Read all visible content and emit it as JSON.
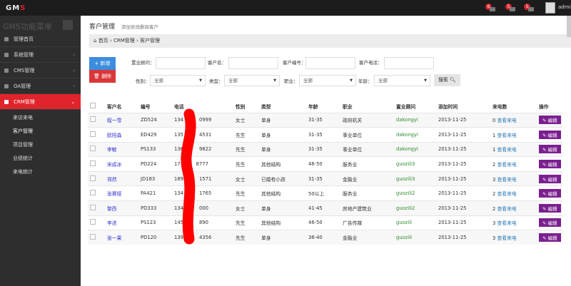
{
  "header": {
    "logo": "GMS",
    "notifications": [
      {
        "icon": "user-icon",
        "count": "6"
      },
      {
        "icon": "mail-icon",
        "count": "5"
      },
      {
        "icon": "task-icon",
        "count": "5"
      }
    ],
    "user": "admin"
  },
  "sidebar": {
    "title": "GMS功能菜单",
    "items": [
      {
        "label": "管理首页",
        "icon": "home-icon"
      },
      {
        "label": "系统管理",
        "icon": "gear-icon"
      },
      {
        "label": "CMS管理",
        "icon": "leaf-icon"
      },
      {
        "label": "OA管理",
        "icon": "sitemap-icon"
      },
      {
        "label": "CRM管理",
        "icon": "phone-icon",
        "active": true
      }
    ],
    "subitems": [
      "来访来电",
      "客户管理",
      "项目管理",
      "业绩统计",
      "来电统计"
    ]
  },
  "page": {
    "title": "客户管理",
    "subtitle": "添加修改删除客户",
    "breadcrumb": [
      "首页",
      "CRM管理",
      "客户管理"
    ]
  },
  "actions": {
    "add": "新增",
    "delete": "删除"
  },
  "filters": {
    "advisor": "置业顾问：",
    "name": "客户名：",
    "code": "客户编号：",
    "phone": "客户电话：",
    "gender": "性别：",
    "type": "类型：",
    "job": "职业：",
    "age": "年龄：",
    "all": "全部",
    "search": "搜索"
  },
  "table": {
    "headers": [
      "客户名",
      "编号",
      "电话",
      "性别",
      "类型",
      "年龄",
      "职业",
      "置业顾问",
      "添加时间",
      "来电数",
      "操作"
    ],
    "view_label": "查看来电",
    "edit_label": "编辑",
    "rows": [
      [
        "程一雪",
        "ZD524",
        "134",
        "0999",
        "女士",
        "单身",
        "31-35",
        "政府机关",
        "dakongyi",
        "2013-11-25",
        "0"
      ],
      [
        "欧阳森",
        "ED429",
        "135",
        "4531",
        "先生",
        "单身",
        "31-35",
        "事业单位",
        "dakongyi",
        "2013-11-25",
        "1"
      ],
      [
        "李敏",
        "PS133",
        "136",
        "9822",
        "先生",
        "单身",
        "31-35",
        "事业单位",
        "dakongyi",
        "2013-11-25",
        "1"
      ],
      [
        "宋成冰",
        "PD224",
        "17",
        "8777",
        "先生",
        "其他结构",
        "46-50",
        "服务业",
        "guozili3",
        "2013-11-25",
        "2"
      ],
      [
        "郑然",
        "JD183",
        "189",
        "1571",
        "女士",
        "已婚有小孩",
        "31-35",
        "金融业",
        "guozili3",
        "2013-11-25",
        "3"
      ],
      [
        "张赛娅",
        "PA421",
        "134",
        "1765",
        "先生",
        "其他结构",
        "50以上",
        "服务业",
        "guozili2",
        "2013-11-25",
        "2"
      ],
      [
        "黎西",
        "PD333",
        "134",
        "000",
        "女士",
        "单身",
        "41-45",
        "房地产建筑业",
        "guozili2",
        "2013-11-25",
        "2"
      ],
      [
        "李进",
        "PS123",
        "145",
        "890",
        "先生",
        "其他结构",
        "46-50",
        "广告传媒",
        "guozili",
        "2013-11-25",
        "3"
      ],
      [
        "张一果",
        "PD120",
        "139",
        "4356",
        "先生",
        "单身",
        "36-40",
        "金融业",
        "guozili",
        "2013-11-25",
        "3"
      ]
    ]
  },
  "colors": {
    "accent": "#e0242c",
    "primary": "#3c8dde",
    "edit": "#7a1f8f",
    "redaction": "#ff0000"
  }
}
